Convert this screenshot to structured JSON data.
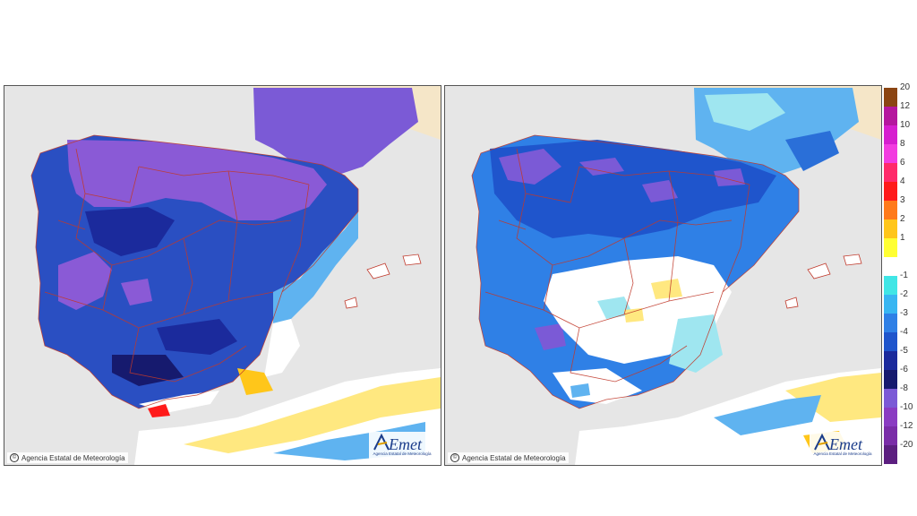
{
  "panels": [
    {
      "id": "left",
      "credit": "Agencia Estatal de Meteorología",
      "logo": "AEmet",
      "logo_sub": "Agencia Estatal de Meteorología"
    },
    {
      "id": "right",
      "credit": "Agencia Estatal de Meteorología",
      "logo": "AEmet",
      "logo_sub": "Agencia Estatal de Meteorología"
    }
  ],
  "legend": {
    "items": [
      {
        "label": "20",
        "color": "#8b4513"
      },
      {
        "label": "12",
        "color": "#b5179e"
      },
      {
        "label": "10",
        "color": "#d61fcf"
      },
      {
        "label": "8",
        "color": "#f23ce0"
      },
      {
        "label": "6",
        "color": "#ff2a6a"
      },
      {
        "label": "4",
        "color": "#ff1a1a"
      },
      {
        "label": "3",
        "color": "#ff7a1a"
      },
      {
        "label": "2",
        "color": "#ffc61a"
      },
      {
        "label": "1",
        "color": "#ffff33"
      },
      {
        "label": "",
        "color": "#ffffff"
      },
      {
        "label": "-1",
        "color": "#40e6e6"
      },
      {
        "label": "-2",
        "color": "#38b6f2"
      },
      {
        "label": "-3",
        "color": "#2f80e6"
      },
      {
        "label": "-4",
        "color": "#1f55cc"
      },
      {
        "label": "-5",
        "color": "#1b2a9c"
      },
      {
        "label": "-6",
        "color": "#161a6e"
      },
      {
        "label": "-8",
        "color": "#7b5ad6"
      },
      {
        "label": "-10",
        "color": "#8a3cc2"
      },
      {
        "label": "-12",
        "color": "#7a2da8"
      },
      {
        "label": "-20",
        "color": "#5c1f80"
      }
    ]
  },
  "colors": {
    "sea": "#e6e6e6",
    "foreign_land": "#f5e6c8",
    "borders": "#c0392b"
  }
}
